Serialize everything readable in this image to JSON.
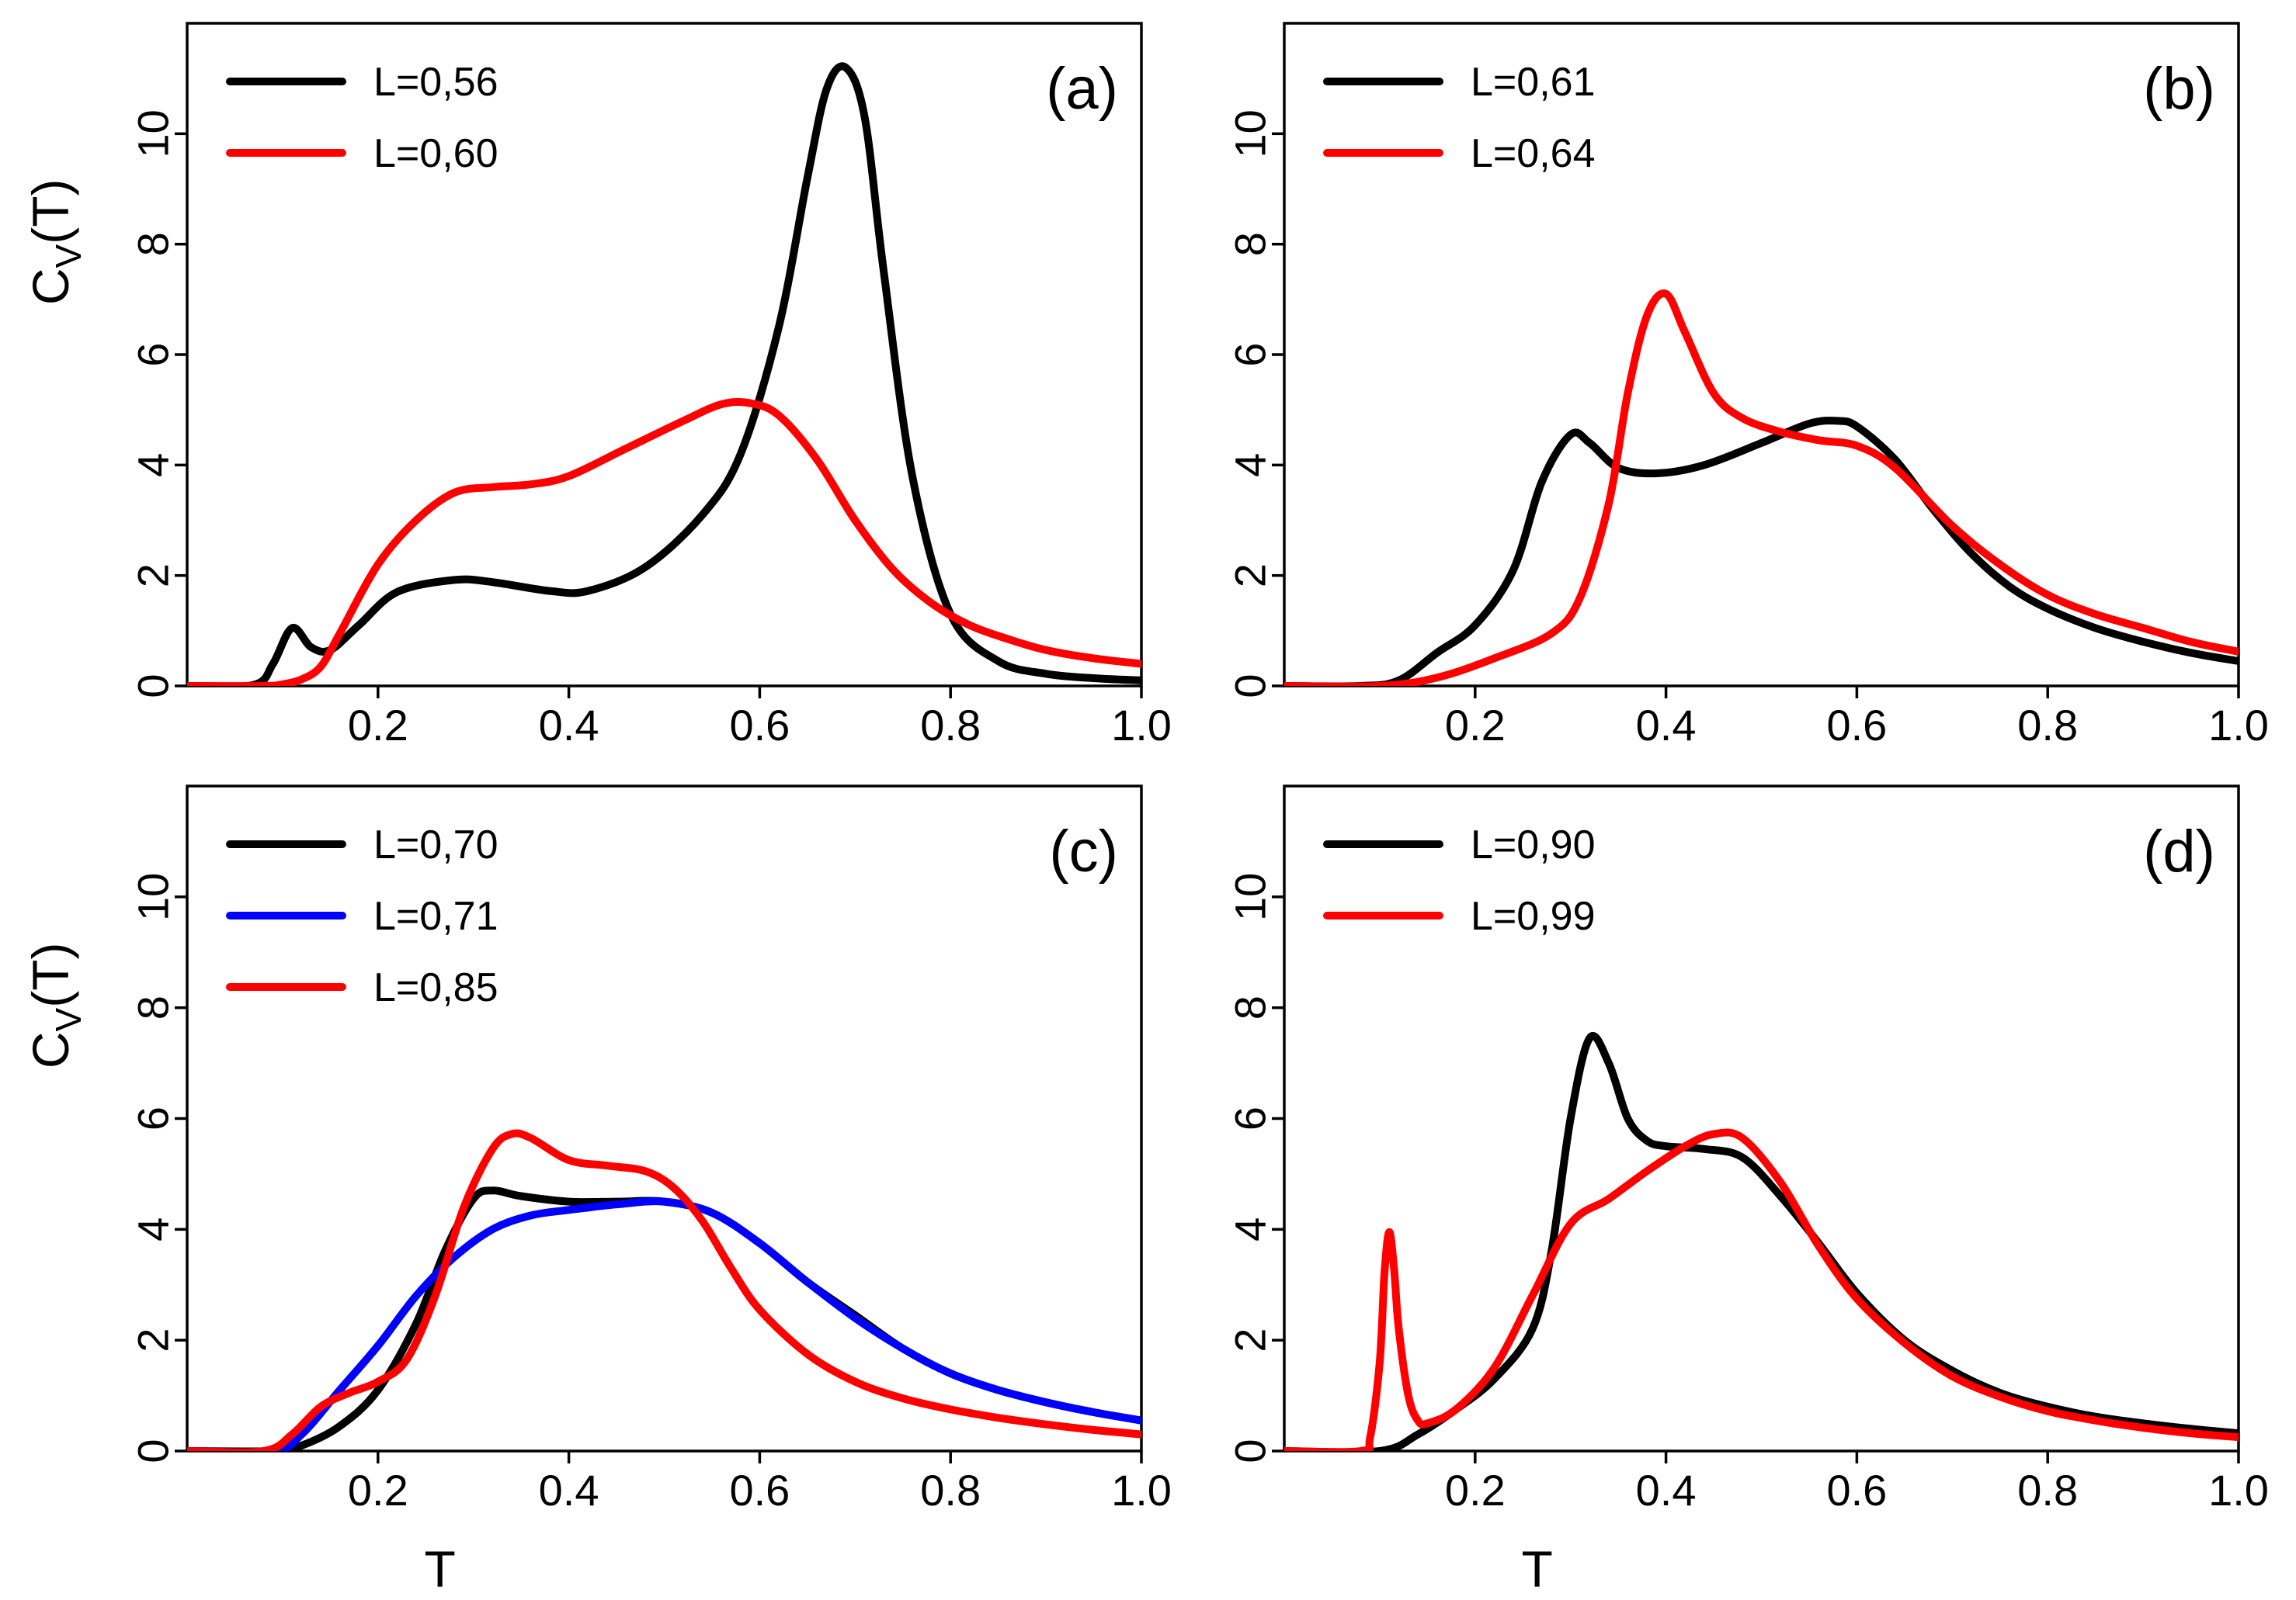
{
  "figure": {
    "ylabel_main": "C",
    "ylabel_sub": "V",
    "ylabel_rest": "(T)",
    "xlabel": "T"
  },
  "chart_data": [
    {
      "type": "line",
      "panel_label": "(a)",
      "xlim": [
        0.0,
        1.0
      ],
      "ylim": [
        0,
        12
      ],
      "xticks": [
        0.2,
        0.4,
        0.6,
        0.8,
        1.0
      ],
      "xtick_labels": [
        "0.2",
        "0.4",
        "0.6",
        "0.8",
        "1.0"
      ],
      "yticks": [
        0,
        2,
        4,
        6,
        8,
        10
      ],
      "ytick_labels": [
        "0",
        "2",
        "4",
        "6",
        "8",
        "10"
      ],
      "ylabel": "Cv(T)",
      "xlabel": "",
      "legend_position": "top-left",
      "series": [
        {
          "name": "L=0,56",
          "color": "#000000",
          "x": [
            0.0,
            0.07,
            0.09,
            0.11,
            0.13,
            0.15,
            0.18,
            0.22,
            0.28,
            0.32,
            0.38,
            0.42,
            0.48,
            0.54,
            0.58,
            0.62,
            0.65,
            0.67,
            0.69,
            0.71,
            0.73,
            0.76,
            0.8,
            0.85,
            0.9,
            0.95,
            1.0
          ],
          "y": [
            0.0,
            0.02,
            0.4,
            1.05,
            0.7,
            0.65,
            1.1,
            1.7,
            1.92,
            1.88,
            1.72,
            1.72,
            2.15,
            3.1,
            4.2,
            6.5,
            9.2,
            10.8,
            11.2,
            10.3,
            7.5,
            3.8,
            1.3,
            0.45,
            0.22,
            0.14,
            0.1
          ]
        },
        {
          "name": "L=0,60",
          "color": "#ff0000",
          "x": [
            0.0,
            0.08,
            0.1,
            0.12,
            0.14,
            0.16,
            0.2,
            0.24,
            0.28,
            0.32,
            0.36,
            0.4,
            0.46,
            0.52,
            0.56,
            0.59,
            0.62,
            0.66,
            0.7,
            0.74,
            0.78,
            0.82,
            0.86,
            0.9,
            0.95,
            1.0
          ],
          "y": [
            0.0,
            0.0,
            0.03,
            0.12,
            0.35,
            0.95,
            2.2,
            3.0,
            3.5,
            3.6,
            3.65,
            3.8,
            4.3,
            4.8,
            5.1,
            5.12,
            4.9,
            4.1,
            3.0,
            2.1,
            1.5,
            1.1,
            0.85,
            0.65,
            0.5,
            0.4
          ]
        }
      ]
    },
    {
      "type": "line",
      "panel_label": "(b)",
      "xlim": [
        0.0,
        1.0
      ],
      "ylim": [
        0,
        12
      ],
      "xticks": [
        0.2,
        0.4,
        0.6,
        0.8,
        1.0
      ],
      "xtick_labels": [
        "0.2",
        "0.4",
        "0.6",
        "0.8",
        "1.0"
      ],
      "yticks": [
        0,
        2,
        4,
        6,
        8,
        10
      ],
      "ytick_labels": [
        "0",
        "2",
        "4",
        "6",
        "8",
        "10"
      ],
      "ylabel": "",
      "xlabel": "",
      "legend_position": "top-left",
      "series": [
        {
          "name": "L=0,61",
          "color": "#000000",
          "x": [
            0.0,
            0.08,
            0.12,
            0.16,
            0.2,
            0.24,
            0.27,
            0.3,
            0.32,
            0.35,
            0.39,
            0.44,
            0.5,
            0.55,
            0.58,
            0.6,
            0.64,
            0.68,
            0.72,
            0.76,
            0.8,
            0.85,
            0.9,
            0.95,
            1.0
          ],
          "y": [
            0.0,
            0.0,
            0.1,
            0.6,
            1.1,
            2.1,
            3.7,
            4.55,
            4.4,
            3.95,
            3.85,
            4.0,
            4.4,
            4.75,
            4.8,
            4.7,
            4.1,
            3.2,
            2.4,
            1.8,
            1.4,
            1.05,
            0.8,
            0.6,
            0.45
          ]
        },
        {
          "name": "L=0,64",
          "color": "#ff0000",
          "x": [
            0.0,
            0.1,
            0.16,
            0.22,
            0.28,
            0.31,
            0.34,
            0.36,
            0.38,
            0.4,
            0.42,
            0.45,
            0.48,
            0.52,
            0.56,
            0.6,
            0.64,
            0.7,
            0.75,
            0.8,
            0.85,
            0.9,
            0.95,
            1.0
          ],
          "y": [
            0.0,
            0.0,
            0.15,
            0.5,
            0.95,
            1.6,
            3.3,
            5.3,
            6.7,
            7.1,
            6.4,
            5.3,
            4.85,
            4.6,
            4.45,
            4.35,
            3.95,
            2.9,
            2.2,
            1.65,
            1.3,
            1.05,
            0.8,
            0.62
          ]
        }
      ]
    },
    {
      "type": "line",
      "panel_label": "(c)",
      "xlim": [
        0.0,
        1.0
      ],
      "ylim": [
        0,
        12
      ],
      "xticks": [
        0.2,
        0.4,
        0.6,
        0.8,
        1.0
      ],
      "xtick_labels": [
        "0.2",
        "0.4",
        "0.6",
        "0.8",
        "1.0"
      ],
      "yticks": [
        0,
        2,
        4,
        6,
        8,
        10
      ],
      "ytick_labels": [
        "0",
        "2",
        "4",
        "6",
        "8",
        "10"
      ],
      "ylabel": "Cv(T)",
      "xlabel": "T",
      "legend_position": "top-left",
      "series": [
        {
          "name": "L=0,70",
          "color": "#000000",
          "x": [
            0.0,
            0.09,
            0.12,
            0.16,
            0.2,
            0.24,
            0.27,
            0.3,
            0.32,
            0.35,
            0.4,
            0.45,
            0.5,
            0.55,
            0.6,
            0.65,
            0.7,
            0.75,
            0.8,
            0.85,
            0.9,
            0.95,
            1.0
          ],
          "y": [
            0.0,
            0.0,
            0.1,
            0.45,
            1.1,
            2.3,
            3.6,
            4.55,
            4.7,
            4.6,
            4.5,
            4.5,
            4.5,
            4.3,
            3.75,
            3.05,
            2.45,
            1.85,
            1.4,
            1.1,
            0.88,
            0.7,
            0.55
          ]
        },
        {
          "name": "L=0,71",
          "color": "#0000ff",
          "x": [
            0.0,
            0.09,
            0.12,
            0.16,
            0.2,
            0.24,
            0.28,
            0.32,
            0.36,
            0.4,
            0.45,
            0.5,
            0.55,
            0.6,
            0.65,
            0.7,
            0.75,
            0.8,
            0.85,
            0.9,
            0.95,
            1.0
          ],
          "y": [
            0.0,
            0.0,
            0.3,
            1.1,
            1.9,
            2.8,
            3.5,
            4.0,
            4.25,
            4.35,
            4.45,
            4.5,
            4.3,
            3.75,
            3.05,
            2.4,
            1.85,
            1.4,
            1.1,
            0.88,
            0.7,
            0.55
          ]
        },
        {
          "name": "L=0,85",
          "color": "#ff0000",
          "x": [
            0.0,
            0.08,
            0.11,
            0.14,
            0.17,
            0.2,
            0.23,
            0.26,
            0.29,
            0.32,
            0.34,
            0.36,
            0.4,
            0.44,
            0.48,
            0.51,
            0.54,
            0.57,
            0.6,
            0.65,
            0.7,
            0.75,
            0.8,
            0.85,
            0.9,
            0.95,
            1.0
          ],
          "y": [
            0.0,
            0.0,
            0.3,
            0.8,
            1.05,
            1.25,
            1.65,
            2.8,
            4.4,
            5.45,
            5.72,
            5.65,
            5.25,
            5.15,
            5.05,
            4.75,
            4.15,
            3.3,
            2.55,
            1.75,
            1.25,
            0.95,
            0.75,
            0.6,
            0.48,
            0.38,
            0.3
          ]
        }
      ]
    },
    {
      "type": "line",
      "panel_label": "(d)",
      "xlim": [
        0.0,
        1.0
      ],
      "ylim": [
        0,
        12
      ],
      "xticks": [
        0.2,
        0.4,
        0.6,
        0.8,
        1.0
      ],
      "xtick_labels": [
        "0.2",
        "0.4",
        "0.6",
        "0.8",
        "1.0"
      ],
      "yticks": [
        0,
        2,
        4,
        6,
        8,
        10
      ],
      "ytick_labels": [
        "0",
        "2",
        "4",
        "6",
        "8",
        "10"
      ],
      "ylabel": "",
      "xlabel": "T",
      "legend_position": "top-left",
      "series": [
        {
          "name": "L=0,90",
          "color": "#000000",
          "x": [
            0.0,
            0.1,
            0.14,
            0.18,
            0.22,
            0.26,
            0.28,
            0.3,
            0.32,
            0.34,
            0.36,
            0.38,
            0.4,
            0.44,
            0.48,
            0.52,
            0.56,
            0.6,
            0.65,
            0.7,
            0.75,
            0.8,
            0.85,
            0.9,
            0.95,
            1.0
          ],
          "y": [
            0.0,
            0.0,
            0.3,
            0.75,
            1.3,
            2.2,
            3.6,
            6.0,
            7.45,
            7.0,
            6.0,
            5.6,
            5.5,
            5.45,
            5.3,
            4.6,
            3.75,
            2.85,
            2.0,
            1.45,
            1.05,
            0.8,
            0.62,
            0.5,
            0.4,
            0.32
          ]
        },
        {
          "name": "L=0,99",
          "color": "#ff0000",
          "x": [
            0.0,
            0.08,
            0.09,
            0.1,
            0.105,
            0.11,
            0.115,
            0.12,
            0.13,
            0.14,
            0.15,
            0.18,
            0.22,
            0.26,
            0.3,
            0.34,
            0.38,
            0.42,
            0.45,
            0.48,
            0.52,
            0.56,
            0.6,
            0.65,
            0.7,
            0.75,
            0.8,
            0.85,
            0.9,
            0.95,
            1.0
          ],
          "y": [
            0.0,
            0.0,
            0.25,
            1.6,
            3.2,
            3.95,
            3.3,
            2.2,
            1.0,
            0.55,
            0.5,
            0.75,
            1.5,
            2.8,
            4.1,
            4.55,
            5.05,
            5.5,
            5.72,
            5.65,
            4.85,
            3.7,
            2.75,
            1.95,
            1.35,
            0.98,
            0.72,
            0.55,
            0.42,
            0.32,
            0.25
          ]
        }
      ]
    }
  ]
}
